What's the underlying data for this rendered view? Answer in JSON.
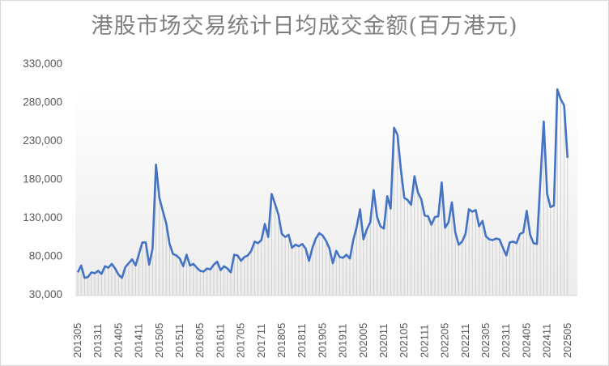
{
  "chart_data": {
    "type": "line",
    "title": "港股市场交易统计日均成交金额(百万港元)",
    "xlabel": "",
    "ylabel": "",
    "ylim": [
      30000,
      330000
    ],
    "yticks": [
      "330,000",
      "280,000",
      "230,000",
      "180,000",
      "130,000",
      "80,000",
      "30,000"
    ],
    "ytick_values": [
      330000,
      280000,
      230000,
      180000,
      130000,
      80000,
      30000
    ],
    "xtick_labels": [
      "201305",
      "201311",
      "201405",
      "201411",
      "201505",
      "201511",
      "201605",
      "201611",
      "201705",
      "201711",
      "201805",
      "201811",
      "201905",
      "201911",
      "202005",
      "202011",
      "202105",
      "202111",
      "202205",
      "202211",
      "202305",
      "202311",
      "202405",
      "202411",
      "202505"
    ],
    "grid": false,
    "legend": "none",
    "line_color": "#4472c4",
    "drop_line_color": "#d0d0d0",
    "start_month": "201305",
    "series": [
      {
        "name": "日均成交金额(百万港元)",
        "values": [
          58000,
          67000,
          51000,
          52000,
          58000,
          57000,
          60000,
          56000,
          66000,
          64000,
          69000,
          63000,
          55000,
          51000,
          65000,
          70000,
          75000,
          67000,
          82000,
          97000,
          97000,
          68000,
          89000,
          198000,
          155000,
          138000,
          122000,
          95000,
          82000,
          80000,
          76000,
          66000,
          81000,
          67000,
          69000,
          64000,
          60000,
          59000,
          63000,
          62000,
          68000,
          72000,
          61000,
          66000,
          63000,
          58000,
          81000,
          80000,
          73000,
          78000,
          80000,
          86000,
          98000,
          96000,
          100000,
          121000,
          104000,
          160000,
          147000,
          133000,
          108000,
          104000,
          107000,
          90000,
          94000,
          92000,
          95000,
          89000,
          73000,
          90000,
          102000,
          109000,
          106000,
          99000,
          89000,
          70000,
          86000,
          78000,
          77000,
          81000,
          76000,
          100000,
          117000,
          140000,
          101000,
          114000,
          123000,
          165000,
          130000,
          118000,
          115000,
          157000,
          141000,
          246000,
          237000,
          192000,
          155000,
          152000,
          146000,
          183000,
          162000,
          153000,
          132000,
          131000,
          120000,
          130000,
          131000,
          175000,
          116000,
          123000,
          149000,
          110000,
          94000,
          98000,
          108000,
          140000,
          137000,
          139000,
          118000,
          125000,
          105000,
          101000,
          100000,
          102000,
          101000,
          90000,
          80000,
          97000,
          98000,
          96000,
          108000,
          110000,
          138000,
          107000,
          96000,
          95000,
          176000,
          254000,
          160000,
          143000,
          145000,
          296000,
          283000,
          275000,
          207000
        ]
      }
    ]
  }
}
